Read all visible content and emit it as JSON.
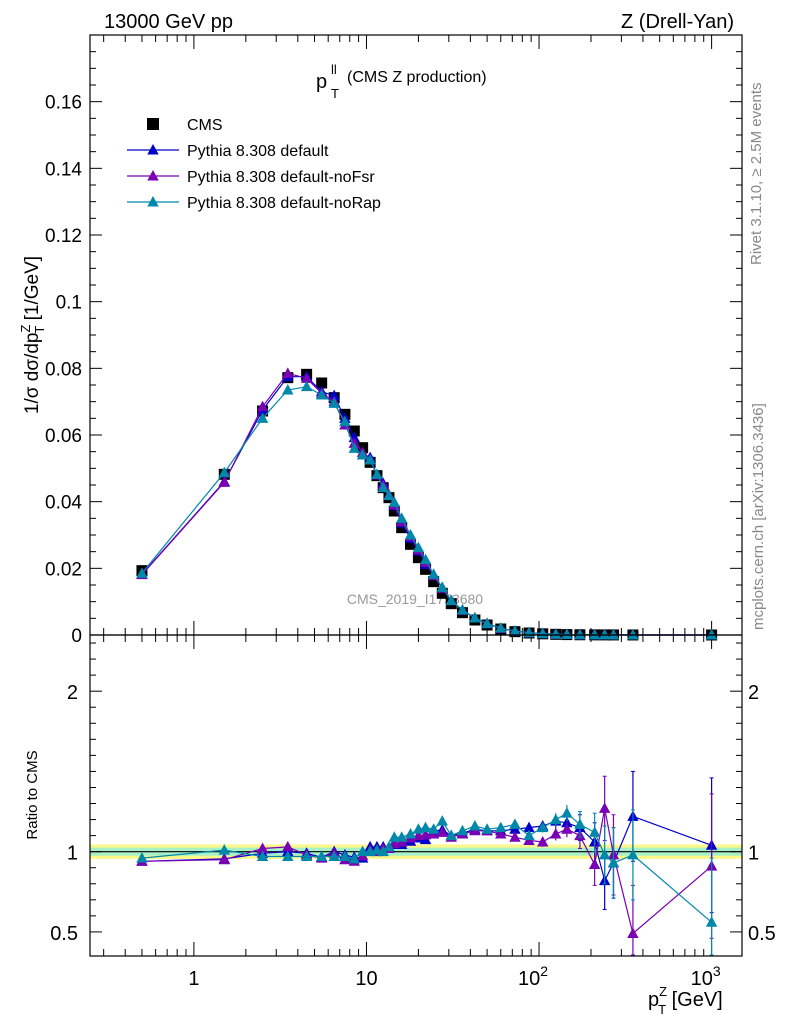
{
  "header": {
    "left": "13000 GeV pp",
    "right": "Z (Drell-Yan)"
  },
  "side_text": {
    "rivet": "Rivet 3.1.10, ≥ 2.5M events",
    "mcplots": "mcplots.cern.ch [arXiv:1306.3436]"
  },
  "watermark": "CMS_2019_I1753680",
  "colors": {
    "CMS": "#000000",
    "default": "#0000cc",
    "noFsr": "#7a00b4",
    "noRap": "#0088aa",
    "band_inner": "#a8f0c8",
    "band_outer": "#fbf88a"
  },
  "chart_data": [
    {
      "type": "scatter",
      "panel": "main",
      "title_main": "p",
      "title_sup": "ll",
      "title_sub": "T",
      "title_suffix": "(CMS Z production)",
      "ylabel": "1/σ dσ/dp_T^Z [1/GeV]",
      "xscale": "log",
      "xlim": [
        0.25,
        1500
      ],
      "ylim": [
        0,
        0.18
      ],
      "yticks": [
        0,
        0.02,
        0.04,
        0.06,
        0.08,
        0.1,
        0.12,
        0.14,
        0.16
      ],
      "ytick_labels": [
        "0",
        "0.02",
        "0.04",
        "0.06",
        "0.08",
        "0.1",
        "0.12",
        "0.14",
        "0.16"
      ],
      "legend_position": "top-left",
      "x": [
        0.5,
        1.5,
        2.5,
        3.5,
        4.5,
        5.5,
        6.5,
        7.5,
        8.5,
        9.5,
        10.5,
        11.5,
        12.5,
        13.5,
        14.5,
        16,
        18,
        20,
        22,
        24.5,
        27.5,
        31,
        36,
        42.5,
        50,
        60,
        72.5,
        87.5,
        105,
        125,
        145,
        172.5,
        210,
        240,
        270,
        350,
        1000
      ],
      "series": [
        {
          "name": "CMS",
          "marker": "square",
          "values": [
            0.0193,
            0.0482,
            0.0672,
            0.0772,
            0.0782,
            0.0756,
            0.0712,
            0.0662,
            0.0612,
            0.0562,
            0.0518,
            0.0478,
            0.0442,
            0.0412,
            0.0372,
            0.0322,
            0.0272,
            0.0232,
            0.0197,
            0.016,
            0.0125,
            0.0094,
            0.0067,
            0.0045,
            0.003,
            0.0018,
            0.001,
            0.0006,
            0.00035,
            0.0002,
            0.00012,
            7e-05,
            4e-05,
            3e-05,
            2e-05,
            1e-05,
            1.2e-06
          ]
        },
        {
          "name": "Pythia 8.308 default",
          "marker": "triangle",
          "values": [
            0.0182,
            0.046,
            0.0675,
            0.0775,
            0.0775,
            0.073,
            0.0718,
            0.065,
            0.0592,
            0.054,
            0.0532,
            0.048,
            0.0455,
            0.042,
            0.0388,
            0.0336,
            0.029,
            0.0252,
            0.0212,
            0.0181,
            0.0142,
            0.0103,
            0.0075,
            0.0051,
            0.0034,
            0.002,
            0.00114,
            0.00068,
            0.0004,
            0.00024,
            0.00014,
            7.8e-05,
            3.8e-05,
            2.45e-05,
            1.8e-05,
            1.22e-05,
            1.25e-06
          ]
        },
        {
          "name": "Pythia 8.308 default-noFsr",
          "marker": "triangle",
          "values": [
            0.0181,
            0.0458,
            0.0685,
            0.0785,
            0.077,
            0.0725,
            0.07,
            0.063,
            0.0575,
            0.0548,
            0.0525,
            0.048,
            0.045,
            0.042,
            0.039,
            0.034,
            0.0295,
            0.0255,
            0.0218,
            0.0178,
            0.014,
            0.0103,
            0.0074,
            0.0051,
            0.0034,
            0.002,
            0.00114,
            0.00068,
            0.0004,
            0.00023,
            0.00014,
            7.7e-05,
            3.7e-05,
            3.8e-05,
            1.96e-05,
            5e-06,
            1.1e-06
          ]
        },
        {
          "name": "Pythia 8.308 default-noRap",
          "marker": "triangle",
          "values": [
            0.0185,
            0.0487,
            0.065,
            0.0735,
            0.0745,
            0.072,
            0.0695,
            0.064,
            0.056,
            0.054,
            0.0525,
            0.0482,
            0.0442,
            0.0418,
            0.0398,
            0.035,
            0.03,
            0.0262,
            0.0226,
            0.0182,
            0.0143,
            0.0103,
            0.0075,
            0.0051,
            0.0034,
            0.0021,
            0.00117,
            0.00069,
            0.0004,
            0.00024,
            0.00015,
            8.1e-05,
            3.9e-05,
            2.7e-05,
            1.85e-05,
            9.8e-06,
            6.7e-07
          ]
        }
      ]
    },
    {
      "type": "line",
      "panel": "ratio",
      "ylabel": "Ratio to CMS",
      "xlabel": "p_T^Z [GeV]",
      "xscale": "log",
      "xlim": [
        0.25,
        1500
      ],
      "ylim": [
        0.35,
        2.35
      ],
      "yticks": [
        0.5,
        1,
        2
      ],
      "ytick_labels": [
        "0.5",
        "1",
        "2"
      ],
      "xtick_labels": [
        "1",
        "10",
        "10^2",
        "10^3"
      ],
      "xticks": [
        1,
        10,
        100,
        1000
      ],
      "band_inner": [
        0.975,
        1.025
      ],
      "band_outer": [
        0.955,
        1.045
      ],
      "x": [
        0.5,
        1.5,
        2.5,
        3.5,
        4.5,
        5.5,
        6.5,
        7.5,
        8.5,
        9.5,
        10.5,
        11.5,
        12.5,
        13.5,
        14.5,
        16,
        18,
        20,
        22,
        24.5,
        27.5,
        31,
        36,
        42.5,
        50,
        60,
        72.5,
        87.5,
        105,
        125,
        145,
        172.5,
        210,
        240,
        270,
        350,
        1000
      ],
      "series": [
        {
          "name": "Pythia 8.308 default",
          "values": [
            0.94,
            0.955,
            0.99,
            1.0,
            0.99,
            0.965,
            1.0,
            0.98,
            0.965,
            0.96,
            1.03,
            1.03,
            1.03,
            1.02,
            1.045,
            1.045,
            1.065,
            1.085,
            1.075,
            1.13,
            1.135,
            1.1,
            1.115,
            1.14,
            1.13,
            1.13,
            1.14,
            1.15,
            1.16,
            1.19,
            1.18,
            1.15,
            1.06,
            0.82,
            0.93,
            1.22,
            1.04
          ],
          "err": [
            0.02,
            0.02,
            0.02,
            0.02,
            0.02,
            0.02,
            0.02,
            0.02,
            0.02,
            0.02,
            0.02,
            0.02,
            0.02,
            0.02,
            0.02,
            0.02,
            0.02,
            0.02,
            0.02,
            0.02,
            0.02,
            0.02,
            0.02,
            0.02,
            0.02,
            0.02,
            0.02,
            0.02,
            0.03,
            0.04,
            0.05,
            0.08,
            0.12,
            0.18,
            0.22,
            0.28,
            0.42
          ]
        },
        {
          "name": "Pythia 8.308 default-noFsr",
          "values": [
            0.94,
            0.95,
            1.02,
            1.03,
            0.98,
            0.96,
            0.99,
            0.95,
            0.94,
            0.975,
            1.01,
            1.0,
            1.02,
            1.02,
            1.05,
            1.06,
            1.085,
            1.1,
            1.105,
            1.11,
            1.12,
            1.09,
            1.11,
            1.13,
            1.13,
            1.11,
            1.09,
            1.07,
            1.06,
            1.11,
            1.14,
            1.1,
            0.92,
            1.27,
            0.98,
            0.49,
            0.91
          ],
          "err": [
            0.02,
            0.02,
            0.02,
            0.02,
            0.02,
            0.02,
            0.02,
            0.02,
            0.02,
            0.02,
            0.02,
            0.02,
            0.02,
            0.02,
            0.02,
            0.02,
            0.02,
            0.02,
            0.02,
            0.02,
            0.02,
            0.02,
            0.02,
            0.02,
            0.02,
            0.02,
            0.02,
            0.02,
            0.03,
            0.04,
            0.05,
            0.08,
            0.13,
            0.2,
            0.25,
            0.3,
            0.45
          ]
        },
        {
          "name": "Pythia 8.308 default-noRap",
          "values": [
            0.96,
            1.01,
            0.97,
            0.97,
            0.97,
            0.97,
            0.97,
            0.97,
            0.955,
            1.0,
            1.0,
            1.01,
            1.0,
            1.03,
            1.09,
            1.09,
            1.11,
            1.14,
            1.15,
            1.14,
            1.19,
            1.1,
            1.13,
            1.16,
            1.14,
            1.15,
            1.17,
            1.1,
            1.15,
            1.2,
            1.24,
            1.17,
            1.12,
            0.98,
            0.93,
            0.98,
            0.56
          ],
          "err": [
            0.02,
            0.02,
            0.02,
            0.02,
            0.02,
            0.02,
            0.02,
            0.02,
            0.02,
            0.02,
            0.02,
            0.02,
            0.02,
            0.02,
            0.02,
            0.02,
            0.02,
            0.02,
            0.02,
            0.02,
            0.02,
            0.02,
            0.02,
            0.02,
            0.02,
            0.02,
            0.02,
            0.02,
            0.03,
            0.04,
            0.05,
            0.08,
            0.12,
            0.18,
            0.22,
            0.28,
            0.4
          ]
        }
      ]
    }
  ]
}
